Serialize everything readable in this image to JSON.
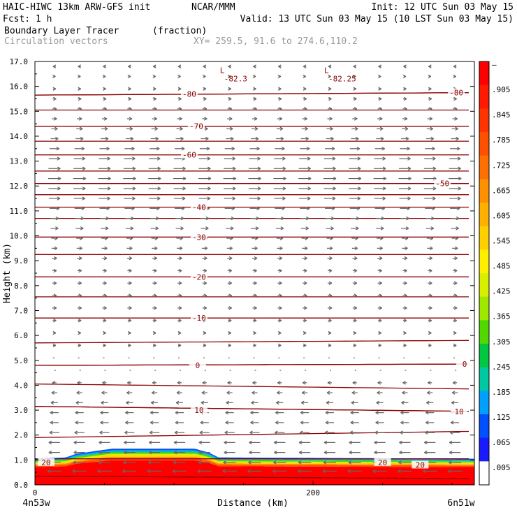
{
  "header": {
    "line1_left": "HAIC-HIWC 13km ARW-GFS init",
    "line1_mid": "NCAR/MMM",
    "line1_right": "Init: 12 UTC Sun 03 May 15",
    "line2_left": "Fcst:    1 h",
    "line2_right": "Valid: 13 UTC Sun 03 May 15 (10 LST Sun 03 May 15)",
    "line3_left": "Boundary Layer Tracer",
    "line3_mid": "(fraction)",
    "line4_left": "Circulation vectors",
    "line4_mid": "XY= 259.5, 91.6 to 274.6,110.2"
  },
  "colors": {
    "contour": "#8b0000",
    "vector": "#666666",
    "fill_surface": "#ff0000"
  },
  "chart_data": {
    "type": "heatmap",
    "xlabel": "Distance (km)",
    "ylabel": "Height (km)",
    "xlim": [
      0,
      316
    ],
    "ylim": [
      0,
      17
    ],
    "x_ticks": [
      {
        "value": 0,
        "label": "0"
      },
      {
        "value": 200,
        "label": "200"
      }
    ],
    "x_end_labels": {
      "left": "4n53w",
      "right": "6n51w"
    },
    "y_ticks": [
      {
        "value": 0,
        "label": "0.0"
      },
      {
        "value": 1,
        "label": "1.0"
      },
      {
        "value": 2,
        "label": "2.0"
      },
      {
        "value": 3,
        "label": "3.0"
      },
      {
        "value": 4,
        "label": "4.0"
      },
      {
        "value": 5,
        "label": "5.0"
      },
      {
        "value": 6,
        "label": "6.0"
      },
      {
        "value": 7,
        "label": "7.0"
      },
      {
        "value": 8,
        "label": "8.0"
      },
      {
        "value": 9,
        "label": "9.0"
      },
      {
        "value": 10,
        "label": "10.0"
      },
      {
        "value": 11,
        "label": "11.0"
      },
      {
        "value": 12,
        "label": "12.0"
      },
      {
        "value": 13,
        "label": "13.0"
      },
      {
        "value": 14,
        "label": "14.0"
      },
      {
        "value": 15,
        "label": "15.0"
      },
      {
        "value": 16,
        "label": "16.0"
      },
      {
        "value": 17,
        "label": "17.0"
      }
    ],
    "colorbar": {
      "labels": [
        "–",
        ".905",
        ".845",
        ".785",
        ".725",
        ".665",
        ".605",
        ".545",
        ".485",
        ".425",
        ".365",
        ".305",
        ".245",
        ".185",
        ".125",
        ".065",
        ".005"
      ],
      "colors": [
        "#ff0000",
        "#ff1a00",
        "#ff3300",
        "#ff5000",
        "#ff7000",
        "#ff9000",
        "#ffb000",
        "#ffd000",
        "#fff000",
        "#d8f000",
        "#a0e800",
        "#50d800",
        "#00c840",
        "#00c8a0",
        "#00a0ff",
        "#0050ff",
        "#1a1aff",
        "#ffffff"
      ]
    },
    "contours": [
      {
        "y0": 0.35,
        "y1": 0.25,
        "label": "20",
        "lx": 8,
        "ly": 0.9
      },
      {
        "y0": 1.05,
        "y1": 1.05,
        "label": "20",
        "lx": 250,
        "ly": 0.9
      },
      {
        "y0": 1.05,
        "y1": 1.05,
        "label": "20",
        "lx": 277,
        "ly": 0.8
      },
      {
        "y0": 1.9,
        "y1": 2.15,
        "label": "",
        "lx": null,
        "ly": null
      },
      {
        "y0": 3.15,
        "y1": 2.95,
        "label": "10",
        "lx": 118,
        "ly": 3.0
      },
      {
        "y0": 3.15,
        "y1": 2.95,
        "label": "10",
        "lx": 305,
        "ly": 2.95
      },
      {
        "y0": 4.05,
        "y1": 3.85,
        "label": "",
        "lx": null,
        "ly": null
      },
      {
        "y0": 4.8,
        "y1": 4.85,
        "label": "0",
        "lx": 117,
        "ly": 4.8
      },
      {
        "y0": 4.8,
        "y1": 4.85,
        "label": "0",
        "lx": 309,
        "ly": 4.85
      },
      {
        "y0": 5.7,
        "y1": 5.8,
        "label": "",
        "lx": null,
        "ly": null
      },
      {
        "y0": 6.7,
        "y1": 6.7,
        "label": "-10",
        "lx": 118,
        "ly": 6.7
      },
      {
        "y0": 7.55,
        "y1": 7.55,
        "label": "",
        "lx": null,
        "ly": null
      },
      {
        "y0": 8.35,
        "y1": 8.35,
        "label": "-20",
        "lx": 118,
        "ly": 8.35
      },
      {
        "y0": 9.25,
        "y1": 9.25,
        "label": "",
        "lx": null,
        "ly": null
      },
      {
        "y0": 9.95,
        "y1": 9.95,
        "label": "-30",
        "lx": 118,
        "ly": 9.95
      },
      {
        "y0": 10.7,
        "y1": 10.7,
        "label": "",
        "lx": null,
        "ly": null
      },
      {
        "y0": 11.15,
        "y1": 11.15,
        "label": "-40",
        "lx": 118,
        "ly": 11.15
      },
      {
        "y0": 11.65,
        "y1": 11.65,
        "label": "",
        "lx": null,
        "ly": null
      },
      {
        "y0": 12.1,
        "y1": 12.1,
        "label": "-50",
        "lx": 293,
        "ly": 12.1
      },
      {
        "y0": 12.6,
        "y1": 12.6,
        "label": "",
        "lx": null,
        "ly": null
      },
      {
        "y0": 13.25,
        "y1": 13.25,
        "label": "-60",
        "lx": 111,
        "ly": 13.25
      },
      {
        "y0": 13.8,
        "y1": 13.8,
        "label": "",
        "lx": null,
        "ly": null
      },
      {
        "y0": 14.4,
        "y1": 14.4,
        "label": "-70",
        "lx": 116,
        "ly": 14.4
      },
      {
        "y0": 15.05,
        "y1": 15.05,
        "label": "",
        "lx": null,
        "ly": null
      },
      {
        "y0": 15.65,
        "y1": 15.75,
        "label": "-80",
        "lx": 111,
        "ly": 15.7
      },
      {
        "y0": 15.65,
        "y1": 15.75,
        "label": "-80",
        "lx": 303,
        "ly": 15.75
      }
    ],
    "lows": [
      {
        "x": 136,
        "y": 16.65,
        "label": "-82.3"
      },
      {
        "x": 211,
        "y": 16.65,
        "label": "-82.25"
      }
    ],
    "tracer_top": [
      [
        0,
        1.05
      ],
      [
        22,
        1.1
      ],
      [
        30,
        1.25
      ],
      [
        55,
        1.45
      ],
      [
        115,
        1.45
      ],
      [
        125,
        1.3
      ],
      [
        132,
        1.1
      ],
      [
        316,
        1.05
      ]
    ],
    "vectors": {
      "columns_x": [
        14,
        32,
        50,
        68,
        86,
        104,
        122,
        140,
        158,
        176,
        194,
        212,
        230,
        248,
        266,
        284,
        302
      ],
      "layers": [
        {
          "y": 0.55,
          "u": -1.0
        },
        {
          "y": 0.9,
          "u": -0.9
        },
        {
          "y": 1.3,
          "u": -0.8
        },
        {
          "y": 1.7,
          "u": -0.8
        },
        {
          "y": 2.1,
          "u": -0.7
        },
        {
          "y": 2.5,
          "u": -0.6
        },
        {
          "y": 2.9,
          "u": -0.6
        },
        {
          "y": 3.3,
          "u": -0.5
        },
        {
          "y": 3.7,
          "u": -0.4
        },
        {
          "y": 4.1,
          "u": -0.3
        },
        {
          "y": 4.6,
          "u": -0.1
        },
        {
          "y": 5.1,
          "u": 0.1
        },
        {
          "y": 5.6,
          "u": 0.2
        },
        {
          "y": 6.1,
          "u": 0.2
        },
        {
          "y": 6.6,
          "u": 0.25
        },
        {
          "y": 7.1,
          "u": 0.3
        },
        {
          "y": 7.6,
          "u": 0.3
        },
        {
          "y": 8.1,
          "u": 0.3
        },
        {
          "y": 8.6,
          "u": 0.3
        },
        {
          "y": 9.1,
          "u": 0.35
        },
        {
          "y": 9.5,
          "u": 0.4
        },
        {
          "y": 9.9,
          "u": 0.45
        },
        {
          "y": 10.3,
          "u": 0.55
        },
        {
          "y": 10.7,
          "u": 0.6
        },
        {
          "y": 11.1,
          "u": 0.7
        },
        {
          "y": 11.5,
          "u": 0.8
        },
        {
          "y": 11.9,
          "u": 0.85
        },
        {
          "y": 12.3,
          "u": 0.9
        },
        {
          "y": 12.7,
          "u": 0.85
        },
        {
          "y": 13.1,
          "u": 0.8
        },
        {
          "y": 13.5,
          "u": 0.7
        },
        {
          "y": 13.9,
          "u": 0.55
        },
        {
          "y": 14.3,
          "u": 0.45
        },
        {
          "y": 14.7,
          "u": 0.35
        },
        {
          "y": 15.1,
          "u": 0.3
        },
        {
          "y": 15.5,
          "u": 0.25
        },
        {
          "y": 15.9,
          "u": 0.2
        },
        {
          "y": 16.4,
          "u": 0.15
        },
        {
          "y": 16.8,
          "u": -0.2
        }
      ]
    }
  }
}
